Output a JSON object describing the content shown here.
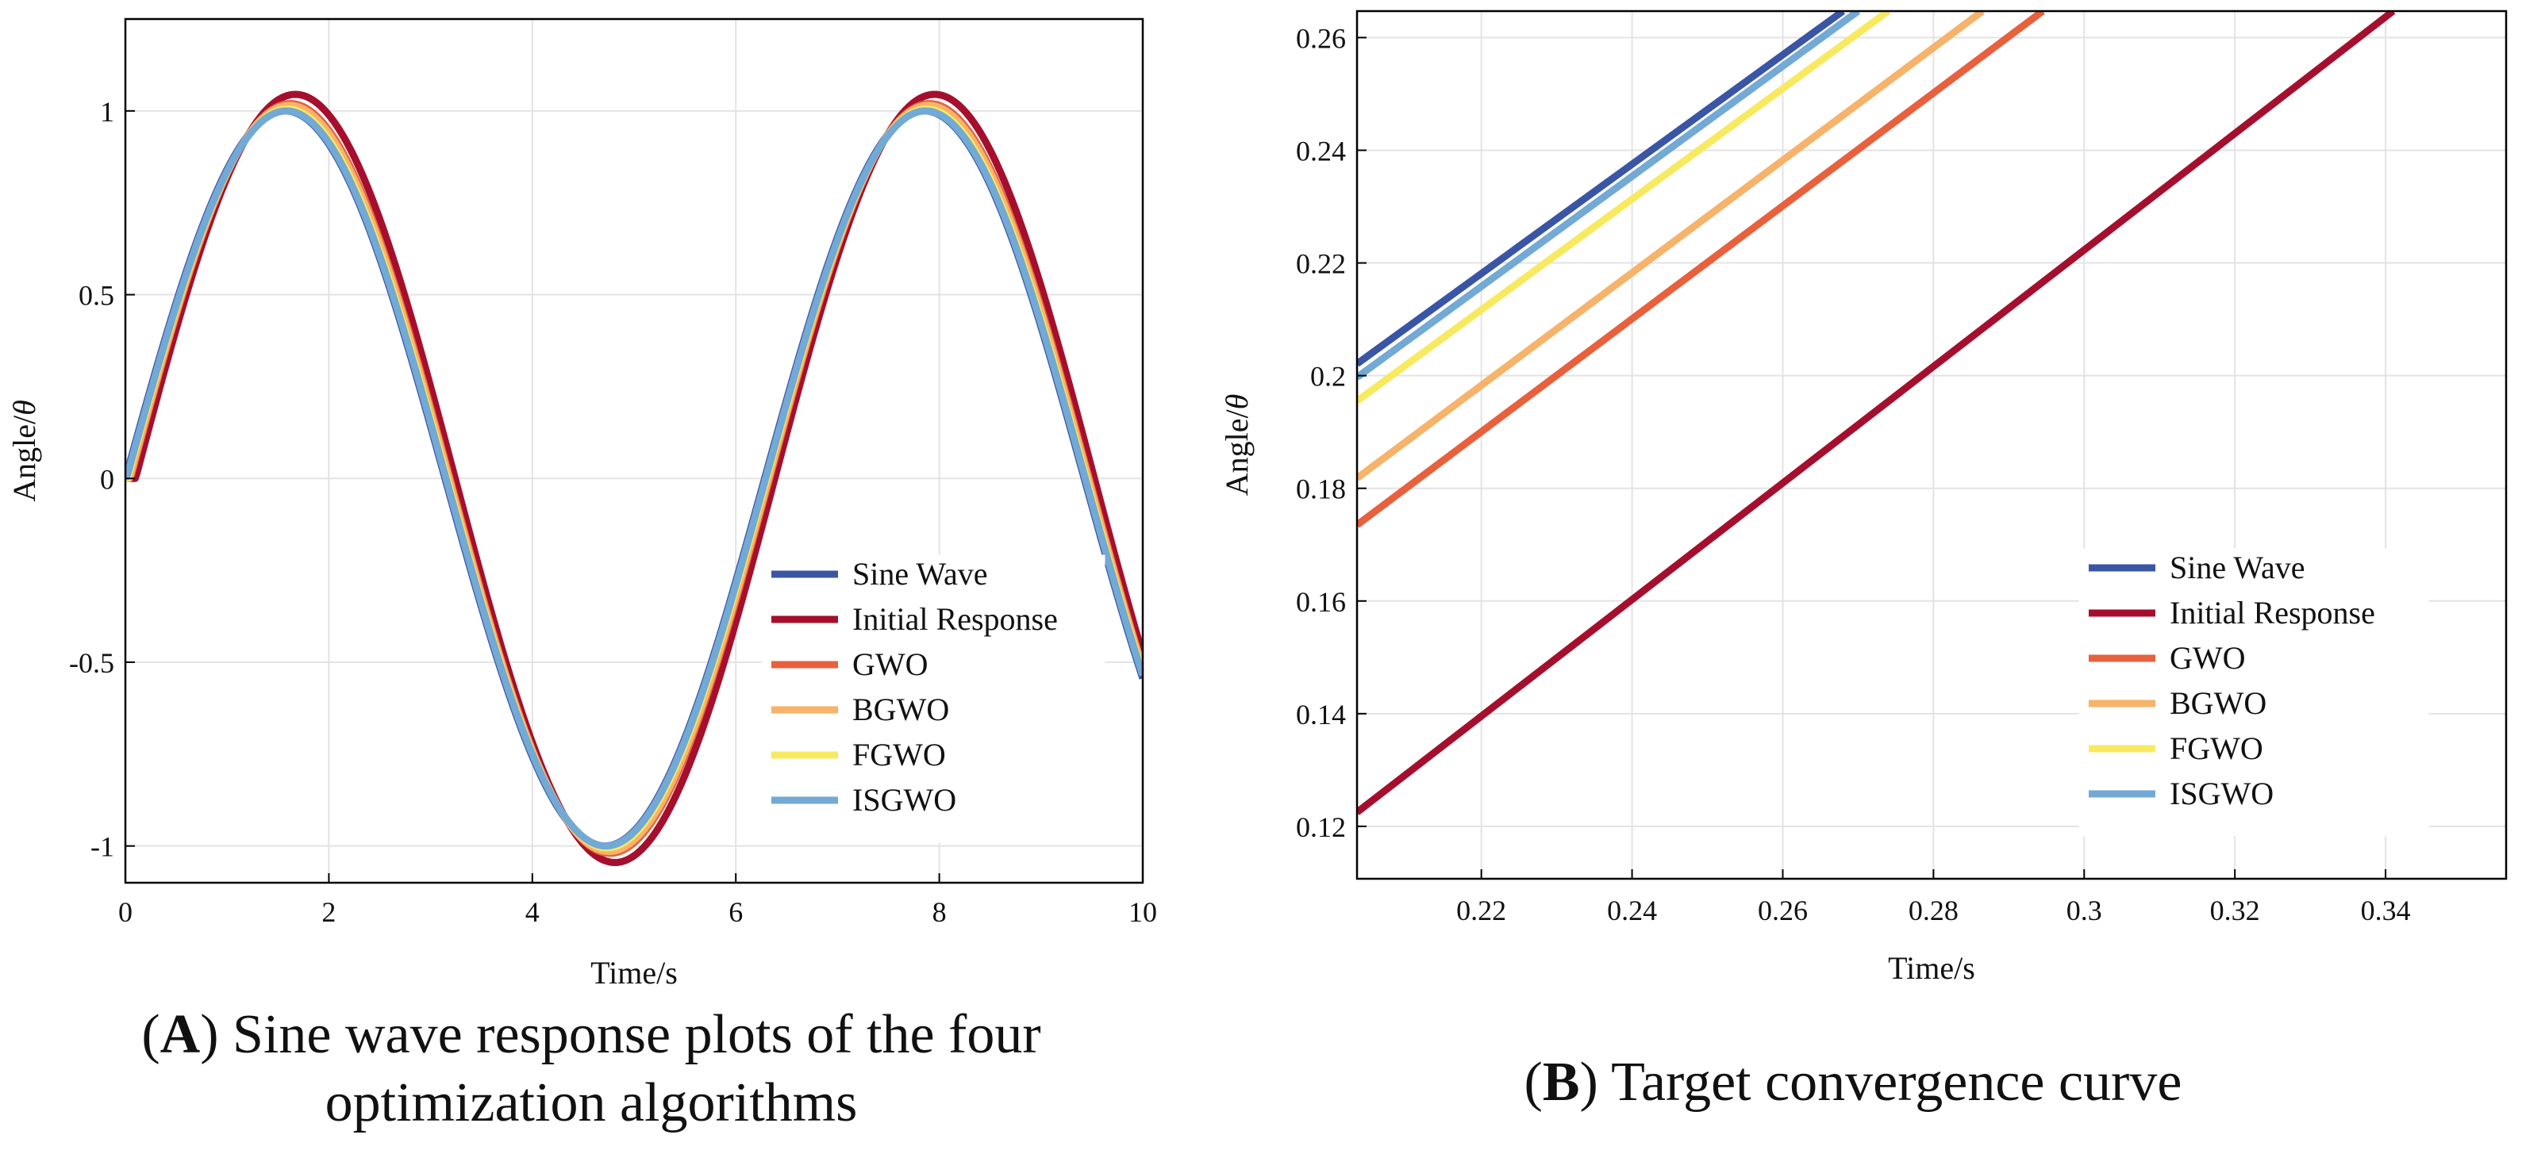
{
  "figure": {
    "background": "#ffffff",
    "grid_color": "#e3e3e3",
    "axis_color": "#000000"
  },
  "legend_entries": [
    {
      "name": "Sine Wave",
      "color": "#3a55a5"
    },
    {
      "name": "Initial Response",
      "color": "#a50f2d"
    },
    {
      "name": "GWO",
      "color": "#e8603c"
    },
    {
      "name": "BGWO",
      "color": "#f7b36a"
    },
    {
      "name": "FGWO",
      "color": "#f7ea60"
    },
    {
      "name": "ISGWO",
      "color": "#72a9d5"
    }
  ],
  "chart_data": [
    {
      "id": "A",
      "type": "line",
      "xlabel": "Time/s",
      "ylabel_prefix": "Angle/",
      "ylabel_symbol": "θ",
      "xlim": [
        0,
        10
      ],
      "ylim": [
        -1.1,
        1.25
      ],
      "xticks": [
        0,
        2,
        4,
        6,
        8,
        10
      ],
      "xtick_labels": [
        "0",
        "2",
        "4",
        "6",
        "8",
        "10"
      ],
      "yticks": [
        -1,
        -0.5,
        0,
        0.5,
        1
      ],
      "ytick_labels": [
        "-1",
        "-0.5",
        "0",
        "0.5",
        "1"
      ],
      "grid": true,
      "legend_position": "bottom-right",
      "series": [
        {
          "name": "Sine Wave",
          "model": "sine",
          "amplitude": 1.0,
          "delay": 0.0
        },
        {
          "name": "Initial Response",
          "model": "sine",
          "amplitude": 1.045,
          "delay": 0.1
        },
        {
          "name": "GWO",
          "model": "sine",
          "amplitude": 1.02,
          "delay": 0.05
        },
        {
          "name": "BGWO",
          "model": "sine",
          "amplitude": 1.015,
          "delay": 0.04
        },
        {
          "name": "FGWO",
          "model": "sine",
          "amplitude": 1.005,
          "delay": 0.02
        },
        {
          "name": "ISGWO",
          "model": "sine",
          "amplitude": 1.0,
          "delay": 0.01
        }
      ]
    },
    {
      "id": "B",
      "type": "line",
      "xlabel": "Time/s",
      "ylabel_prefix": "Angle/",
      "ylabel_symbol": "θ",
      "xlim": [
        0.2035,
        0.356
      ],
      "ylim": [
        0.1107,
        0.2647
      ],
      "xticks": [
        0.22,
        0.24,
        0.26,
        0.28,
        0.3,
        0.32,
        0.34
      ],
      "xtick_labels": [
        "0.22",
        "0.24",
        "0.26",
        "0.28",
        "0.3",
        "0.32",
        "0.34"
      ],
      "yticks": [
        0.12,
        0.14,
        0.16,
        0.18,
        0.2,
        0.22,
        0.24,
        0.26
      ],
      "ytick_labels": [
        "0.12",
        "0.14",
        "0.16",
        "0.18",
        "0.2",
        "0.22",
        "0.24",
        "0.26"
      ],
      "grid": true,
      "legend_position": "bottom-right",
      "series": [
        {
          "name": "Sine Wave",
          "x": [
            0.2035,
            0.268
          ],
          "y": [
            0.2021,
            0.2647
          ]
        },
        {
          "name": "Initial Response",
          "x": [
            0.2035,
            0.341
          ],
          "y": [
            0.1225,
            0.2647
          ]
        },
        {
          "name": "GWO",
          "x": [
            0.2035,
            0.2945
          ],
          "y": [
            0.1735,
            0.2647
          ]
        },
        {
          "name": "BGWO",
          "x": [
            0.2035,
            0.2865
          ],
          "y": [
            0.1818,
            0.2647
          ]
        },
        {
          "name": "FGWO",
          "x": [
            0.2035,
            0.274
          ],
          "y": [
            0.1955,
            0.2647
          ]
        },
        {
          "name": "ISGWO",
          "x": [
            0.2035,
            0.27
          ],
          "y": [
            0.1997,
            0.2647
          ]
        }
      ]
    }
  ],
  "captions": {
    "a_letter": "A",
    "a_line1_rest": ") Sine wave response plots of the four",
    "a_line2": "optimization algorithms",
    "b_letter": "B",
    "b_rest": ") Target convergence curve"
  }
}
